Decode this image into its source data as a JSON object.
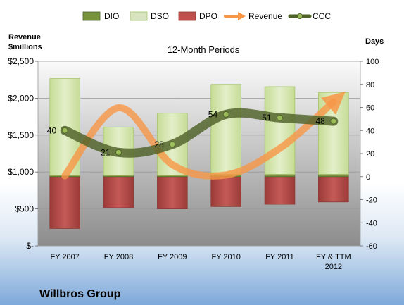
{
  "company": "Willbros Group",
  "chart_data": {
    "type": "combo",
    "title": "12-Month Periods",
    "left_axis_label": [
      "Revenue",
      "$millions"
    ],
    "right_axis_label": "Days",
    "categories": [
      [
        "FY 2007"
      ],
      [
        "FY 2008"
      ],
      [
        "FY 2009"
      ],
      [
        "FY 2010"
      ],
      [
        "FY 2011"
      ],
      [
        "FY & TTM",
        "2012"
      ]
    ],
    "left_axis": {
      "min": 0,
      "max": 2500,
      "step": 500,
      "tick_labels": [
        "$-",
        "$500",
        "$1,000",
        "$1,500",
        "$2,000",
        "$2,500"
      ]
    },
    "right_axis": {
      "min": -60,
      "max": 100,
      "step": 20,
      "tick_labels": [
        "-60",
        "-40",
        "-20",
        "0",
        "20",
        "40",
        "60",
        "80",
        "100"
      ]
    },
    "legend_position": "top",
    "legend": [
      "DIO",
      "DSO",
      "DPO",
      "Revenue",
      "CCC"
    ],
    "series": [
      {
        "name": "DIO",
        "axis": "right",
        "kind": "bar-stack-up",
        "values": [
          1,
          1,
          1,
          2,
          2,
          2
        ]
      },
      {
        "name": "DSO",
        "axis": "right",
        "kind": "bar-stack-up",
        "values": [
          84,
          42,
          54,
          78,
          76,
          71
        ]
      },
      {
        "name": "DPO",
        "axis": "right",
        "kind": "bar-down",
        "values": [
          -45,
          -27,
          -28,
          -26,
          -24,
          -22
        ]
      },
      {
        "name": "Revenue",
        "axis": "left",
        "kind": "line",
        "values": [
          950,
          1870,
          1100,
          960,
          1320,
          1950
        ]
      },
      {
        "name": "CCC",
        "axis": "right",
        "kind": "line",
        "values": [
          40,
          21,
          28,
          54,
          51,
          48
        ],
        "labels": [
          "40",
          "21",
          "28",
          "54",
          "51",
          "48"
        ]
      }
    ],
    "colors": {
      "DIO": "#77933c",
      "DSO": "#d7e4bd",
      "DPO": "#c0504d",
      "Revenue": "#f79646",
      "CCC": "#4f6228"
    }
  }
}
